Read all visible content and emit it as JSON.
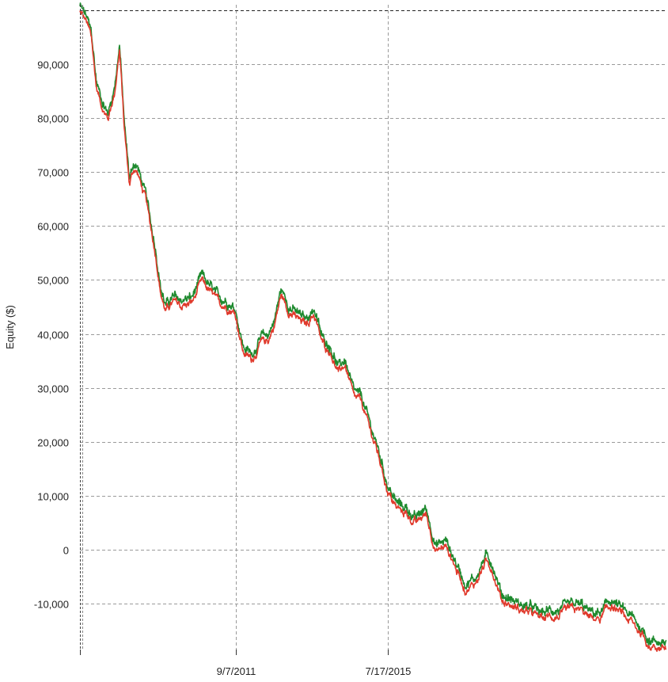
{
  "chart_data": {
    "type": "line",
    "title": "",
    "xlabel": "",
    "ylabel": "Equity ($)",
    "ylim": [
      -18500,
      101000
    ],
    "xlim": [
      "2007-10-01",
      "2022-07-31"
    ],
    "y_ticks": [
      -10000,
      0,
      10000,
      20000,
      30000,
      40000,
      50000,
      60000,
      70000,
      80000,
      90000
    ],
    "y_tick_labels": [
      "-10,000",
      "0",
      "10,000",
      "20,000",
      "30,000",
      "40,000",
      "50,000",
      "60,000",
      "70,000",
      "80,000",
      "90,000"
    ],
    "x_ticks": [
      "2007-10-01",
      "2011-09-07",
      "2015-07-17"
    ],
    "x_tick_labels": [
      "",
      "9/7/2011",
      "7/17/2015"
    ],
    "reference_line": {
      "y": 100000,
      "style": "dashed",
      "color": "#222222"
    },
    "grid": true,
    "grid_style": "dashed",
    "colors": {
      "high": "#1e8a2e",
      "low": "#e03a2c",
      "grid": "#9a9a9a",
      "axis": "#333333"
    },
    "series": [
      {
        "x": [
          "2007-10-01",
          "2007-12-01",
          "2008-01-15",
          "2008-03-01",
          "2008-04-15",
          "2008-06-15",
          "2008-08-15",
          "2008-10-01",
          "2008-11-15",
          "2009-01-01",
          "2009-02-10",
          "2009-03-20",
          "2009-05-01",
          "2009-06-01",
          "2009-07-15",
          "2009-09-01",
          "2009-10-15",
          "2009-12-01",
          "2010-02-01",
          "2010-05-01",
          "2010-08-01",
          "2010-11-01",
          "2011-01-15",
          "2011-04-01",
          "2011-06-15",
          "2011-09-07",
          "2011-11-15",
          "2012-02-01",
          "2012-05-01",
          "2012-07-01",
          "2012-09-01",
          "2012-11-01",
          "2013-01-15",
          "2013-04-01",
          "2013-06-15",
          "2013-09-01",
          "2013-11-15",
          "2014-02-01",
          "2014-04-15",
          "2014-06-15",
          "2014-09-01",
          "2014-11-15",
          "2015-02-01",
          "2015-04-15",
          "2015-07-17",
          "2015-10-01",
          "2016-01-01",
          "2016-04-01",
          "2016-07-01",
          "2016-10-01",
          "2017-01-01",
          "2017-04-01",
          "2017-07-01",
          "2017-10-01",
          "2018-01-01",
          "2018-03-01",
          "2018-06-01",
          "2018-09-01",
          "2018-12-01",
          "2019-03-01",
          "2019-06-01",
          "2019-09-01",
          "2019-12-01",
          "2020-03-01",
          "2020-06-01",
          "2020-09-01",
          "2020-12-01",
          "2021-03-01",
          "2021-06-01",
          "2021-09-01",
          "2021-12-01",
          "2022-03-01",
          "2022-07-31"
        ],
        "y": [
          100000,
          98000,
          95000,
          86000,
          83000,
          80000,
          85000,
          93000,
          78000,
          68000,
          71000,
          70000,
          67000,
          65000,
          60000,
          55000,
          48000,
          44500,
          46000,
          45500,
          46000,
          50000,
          48000,
          46000,
          45500,
          44000,
          37000,
          35500,
          38500,
          39000,
          42000,
          47500,
          44500,
          43000,
          42000,
          44000,
          38500,
          37000,
          33000,
          34500,
          28500,
          27500,
          22500,
          18000,
          11000,
          8000,
          7000,
          5000,
          7000,
          0,
          1000,
          -3000,
          -7000,
          -6000,
          -2000,
          -3000,
          -9000,
          -10000,
          -11000,
          -11500,
          -12500,
          -12000,
          -12000,
          -11000,
          -11000,
          -12500,
          -12500,
          -10000,
          -11500,
          -13000,
          -15000,
          -17500,
          -18000
        ]
      }
    ]
  }
}
